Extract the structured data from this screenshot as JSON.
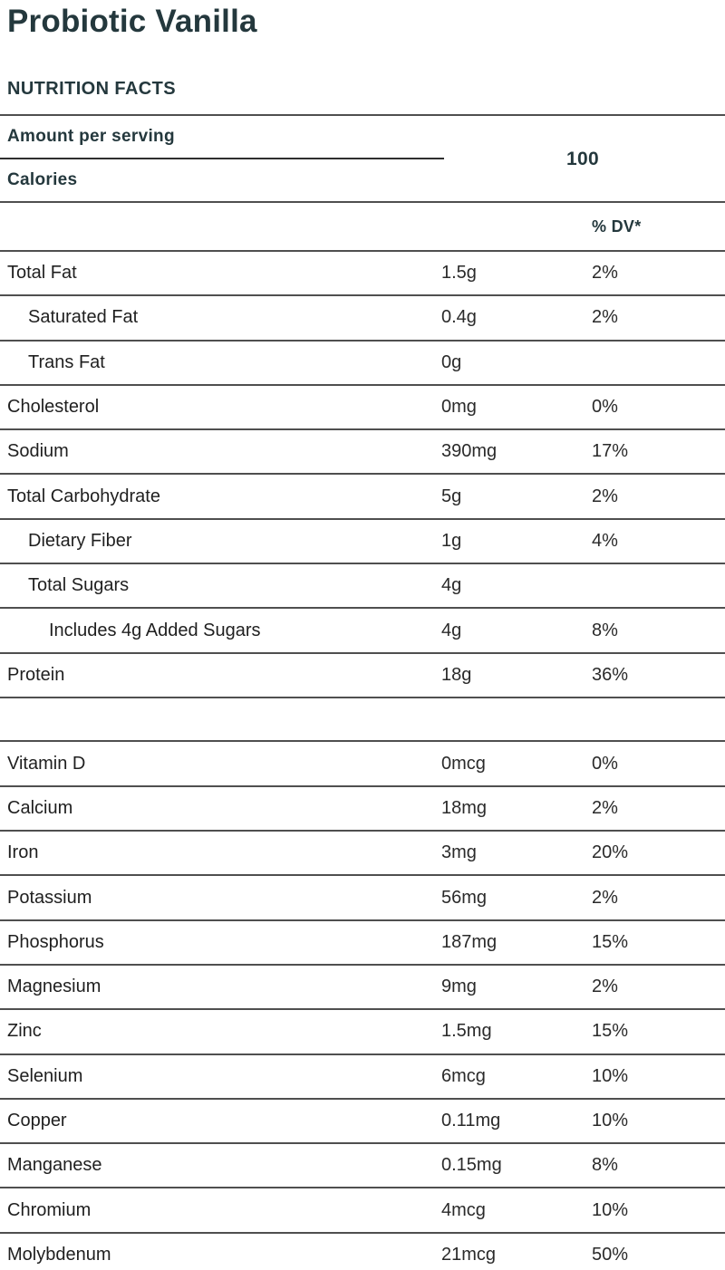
{
  "page": {
    "title": "Probiotic Vanilla"
  },
  "panel": {
    "section_header": "NUTRITION FACTS",
    "amount_per_serving_label": "Amount per serving",
    "calories_label": "Calories",
    "calories_value": "100",
    "dv_header": "% DV*"
  },
  "colors": {
    "heading_teal": "#24383d",
    "body_text": "#1f1f1f",
    "rule_gray": "#4f4f4f",
    "background": "#ffffff"
  },
  "macro_rows": [
    {
      "label": "Total Fat",
      "value": "1.5g",
      "dv": "2%",
      "indent": 0
    },
    {
      "label": "Saturated Fat",
      "value": "0.4g",
      "dv": "2%",
      "indent": 1
    },
    {
      "label": "Trans Fat",
      "value": "0g",
      "dv": "",
      "indent": 1
    },
    {
      "label": "Cholesterol",
      "value": "0mg",
      "dv": "0%",
      "indent": 0
    },
    {
      "label": "Sodium",
      "value": "390mg",
      "dv": "17%",
      "indent": 0
    },
    {
      "label": "Total Carbohydrate",
      "value": "5g",
      "dv": "2%",
      "indent": 0
    },
    {
      "label": "Dietary Fiber",
      "value": "1g",
      "dv": "4%",
      "indent": 1
    },
    {
      "label": "Total Sugars",
      "value": "4g",
      "dv": "",
      "indent": 1
    },
    {
      "label": "Includes 4g Added Sugars",
      "value": "4g",
      "dv": "8%",
      "indent": 2
    },
    {
      "label": "Protein",
      "value": "18g",
      "dv": "36%",
      "indent": 0
    }
  ],
  "micro_rows": [
    {
      "label": "Vitamin D",
      "value": "0mcg",
      "dv": "0%",
      "indent": 0
    },
    {
      "label": "Calcium",
      "value": "18mg",
      "dv": "2%",
      "indent": 0
    },
    {
      "label": "Iron",
      "value": "3mg",
      "dv": "20%",
      "indent": 0
    },
    {
      "label": "Potassium",
      "value": "56mg",
      "dv": "2%",
      "indent": 0
    },
    {
      "label": "Phosphorus",
      "value": "187mg",
      "dv": "15%",
      "indent": 0
    },
    {
      "label": "Magnesium",
      "value": "9mg",
      "dv": "2%",
      "indent": 0
    },
    {
      "label": "Zinc",
      "value": "1.5mg",
      "dv": "15%",
      "indent": 0
    },
    {
      "label": "Selenium",
      "value": "6mcg",
      "dv": "10%",
      "indent": 0
    },
    {
      "label": "Copper",
      "value": "0.11mg",
      "dv": "10%",
      "indent": 0
    },
    {
      "label": "Manganese",
      "value": "0.15mg",
      "dv": "8%",
      "indent": 0
    },
    {
      "label": "Chromium",
      "value": "4mcg",
      "dv": "10%",
      "indent": 0
    },
    {
      "label": "Molybdenum",
      "value": "21mcg",
      "dv": "50%",
      "indent": 0
    }
  ]
}
